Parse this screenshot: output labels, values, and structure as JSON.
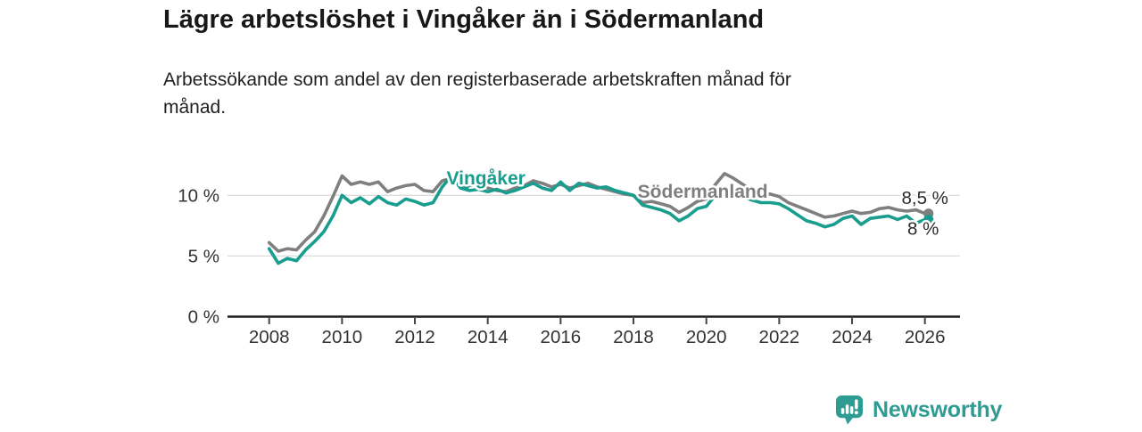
{
  "header": {
    "note": "title and subtitle are bound from chart_data"
  },
  "chart_data": {
    "type": "line",
    "title": "Lägre arbetslöshet i Vingåker än i Södermanland",
    "subtitle": "Arbetssökande som andel av den registerbaserade arbetskraften månad för\nmånad.",
    "x_unit": "year (monthly series, values estimated quarterly)",
    "xlim": [
      2006.85,
      2027.0
    ],
    "ylim": [
      0,
      12.9
    ],
    "grid": "horizontal-only",
    "legend": "inline-series-labels",
    "x": [
      2008,
      2008.25,
      2008.5,
      2008.75,
      2009,
      2009.25,
      2009.5,
      2009.75,
      2010,
      2010.25,
      2010.5,
      2010.75,
      2011,
      2011.25,
      2011.5,
      2011.75,
      2012,
      2012.25,
      2012.5,
      2012.75,
      2013,
      2013.25,
      2013.5,
      2013.75,
      2014,
      2014.25,
      2014.5,
      2014.75,
      2015,
      2015.25,
      2015.5,
      2015.75,
      2016,
      2016.25,
      2016.5,
      2016.75,
      2017,
      2017.25,
      2017.5,
      2017.75,
      2018,
      2018.25,
      2018.5,
      2018.75,
      2019,
      2019.25,
      2019.5,
      2019.75,
      2020,
      2020.25,
      2020.5,
      2020.75,
      2021,
      2021.25,
      2021.5,
      2021.75,
      2022,
      2022.25,
      2022.5,
      2022.75,
      2023,
      2023.25,
      2023.5,
      2023.75,
      2024,
      2024.25,
      2024.5,
      2024.75,
      2025,
      2025.25,
      2025.5,
      2025.75,
      2026
    ],
    "series": [
      {
        "name": "Vingåker",
        "color": "#199d8f",
        "end_label": "8 %",
        "end_value": 8.0,
        "values": [
          5.6,
          4.4,
          4.8,
          4.6,
          5.5,
          6.2,
          7.0,
          8.3,
          10.0,
          9.4,
          9.8,
          9.3,
          9.9,
          9.4,
          9.2,
          9.7,
          9.5,
          9.2,
          9.4,
          10.7,
          11.6,
          10.6,
          10.4,
          10.5,
          10.3,
          10.5,
          10.2,
          10.4,
          10.7,
          11.0,
          10.6,
          10.4,
          11.1,
          10.4,
          11.0,
          10.8,
          10.6,
          10.7,
          10.4,
          10.2,
          10.0,
          9.2,
          9.0,
          8.8,
          8.5,
          7.9,
          8.3,
          8.9,
          9.1,
          10.0,
          10.5,
          10.2,
          9.9,
          9.6,
          9.4,
          9.4,
          9.3,
          8.9,
          8.4,
          7.9,
          7.7,
          7.4,
          7.6,
          8.1,
          8.3,
          7.6,
          8.1,
          8.2,
          8.3,
          8.0,
          8.3,
          7.7,
          8.0
        ]
      },
      {
        "name": "Södermanland",
        "color": "#7f7f7f",
        "end_label": "8,5 %",
        "end_value": 8.5,
        "values": [
          6.1,
          5.4,
          5.6,
          5.5,
          6.3,
          7.0,
          8.3,
          9.9,
          11.6,
          10.9,
          11.1,
          10.9,
          11.1,
          10.3,
          10.6,
          10.8,
          10.9,
          10.4,
          10.3,
          11.2,
          11.4,
          11.0,
          10.8,
          10.9,
          10.6,
          10.4,
          10.3,
          10.6,
          10.8,
          11.2,
          11.0,
          10.7,
          10.9,
          10.6,
          10.8,
          11.0,
          10.7,
          10.5,
          10.3,
          10.1,
          10.0,
          9.4,
          9.5,
          9.3,
          9.1,
          8.6,
          9.0,
          9.5,
          9.7,
          10.9,
          11.8,
          11.4,
          10.9,
          10.4,
          10.2,
          10.1,
          9.9,
          9.4,
          9.1,
          8.8,
          8.5,
          8.2,
          8.3,
          8.5,
          8.7,
          8.5,
          8.6,
          8.9,
          9.0,
          8.8,
          8.7,
          8.8,
          8.5
        ]
      }
    ],
    "y_ticks": [
      {
        "value": 0,
        "label": "0 %"
      },
      {
        "value": 5,
        "label": "5 %"
      },
      {
        "value": 10,
        "label": "10 %"
      }
    ],
    "x_ticks": [
      {
        "value": 2008,
        "label": "2008"
      },
      {
        "value": 2010,
        "label": "2010"
      },
      {
        "value": 2012,
        "label": "2012"
      },
      {
        "value": 2014,
        "label": "2014"
      },
      {
        "value": 2016,
        "label": "2016"
      },
      {
        "value": 2018,
        "label": "2018"
      },
      {
        "value": 2020,
        "label": "2020"
      },
      {
        "value": 2022,
        "label": "2022"
      },
      {
        "value": 2024,
        "label": "2024"
      },
      {
        "value": 2026,
        "label": "2026"
      }
    ],
    "annotations": {
      "series_labels": [
        {
          "text": "Vingåker",
          "color": "#199d8f",
          "x": 2013.95,
          "y": 10.9,
          "marker": {
            "shape": "triangle-down",
            "x": 2013.4,
            "y": 10.95
          }
        },
        {
          "text": "Södermanland",
          "color": "#7f7f7f",
          "x": 2019.9,
          "y": 9.8
        }
      ],
      "end_labels": [
        {
          "text": "8,5 %",
          "x": 2026.0,
          "y": 9.3,
          "color": "#2b2b2b"
        },
        {
          "text": "8 %",
          "x": 2025.95,
          "y": 6.75,
          "color": "#2b2b2b"
        }
      ]
    }
  },
  "style": {
    "accent_teal": "#199d8f",
    "series_gray": "#7f7f7f",
    "axis_text": "#333333",
    "grid_color": "#dcdcdc",
    "axis_line": "#1d1d1d",
    "background": "#ffffff"
  },
  "footer": {
    "brand": "Newsworthy",
    "brand_color": "#2f9c94",
    "logo_icon": "bar-chart-speech-bubble-icon"
  }
}
